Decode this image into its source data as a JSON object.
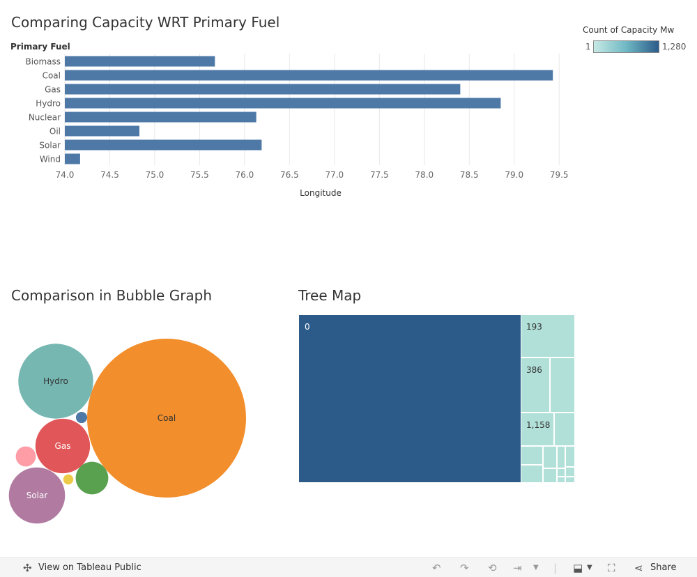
{
  "bar_title": "Comparing Capacity WRT Primary Fuel",
  "bubble_title": "Comparison in Bubble Graph",
  "treemap_title": "Tree Map",
  "legend": {
    "title": "Count of Capacity Mw",
    "min_label": "1",
    "max_label": "1,280",
    "ramp_colors": [
      "#c6e9e4",
      "#6fb8c4",
      "#2c5b8a"
    ]
  },
  "footer": {
    "view_label": "View on Tableau Public",
    "share_label": "Share",
    "icons": [
      "tableau-logo-icon",
      "undo-icon",
      "redo-icon",
      "revert-icon",
      "refresh-icon",
      "download-icon",
      "fullscreen-icon",
      "share-icon"
    ]
  },
  "colors": {
    "bar": "#4e79a7",
    "treemap_dark": "#2c5b8a",
    "treemap_light": "#b1e0d9",
    "gridline": "#e8e8e8"
  },
  "chart_data": [
    {
      "type": "bar",
      "orientation": "horizontal",
      "title": "Comparing Capacity WRT Primary Fuel",
      "ylabel": "Primary Fuel",
      "xlabel": "Longitude",
      "categories": [
        "Biomass",
        "Coal",
        "Gas",
        "Hydro",
        "Nuclear",
        "Oil",
        "Solar",
        "Wind"
      ],
      "values": [
        75.67,
        79.43,
        78.4,
        78.85,
        76.13,
        74.83,
        76.19,
        74.17
      ],
      "xlim": [
        74.0,
        79.7
      ],
      "ticks": [
        "74.0",
        "74.5",
        "75.0",
        "75.5",
        "76.0",
        "76.5",
        "77.0",
        "77.5",
        "78.0",
        "78.5",
        "79.0",
        "79.5"
      ],
      "grid": true
    },
    {
      "type": "bubble",
      "title": "Comparison in Bubble Graph",
      "bubbles": [
        {
          "label": "Coal",
          "value": 1000,
          "color": "#f28e2b",
          "text_color": "#333"
        },
        {
          "label": "Hydro",
          "value": 222,
          "color": "#76b7b2",
          "text_color": "#333"
        },
        {
          "label": "Solar",
          "value": 125,
          "color": "#b07aa1",
          "text_color": "#ffffff"
        },
        {
          "label": "Gas",
          "value": 118,
          "color": "#e15759",
          "text_color": "#ffffff"
        },
        {
          "label": "",
          "value": 42,
          "color": "#59a14f",
          "text_color": "#333"
        },
        {
          "label": "",
          "value": 16,
          "color": "#ff9da7",
          "text_color": "#333"
        },
        {
          "label": "",
          "value": 4,
          "color": "#edc948",
          "text_color": "#333"
        },
        {
          "label": "",
          "value": 5,
          "color": "#4e79a7",
          "text_color": "#333"
        }
      ]
    },
    {
      "type": "treemap",
      "title": "Tree Map",
      "labels": [
        "0",
        "193",
        "386",
        "1,158"
      ]
    }
  ]
}
